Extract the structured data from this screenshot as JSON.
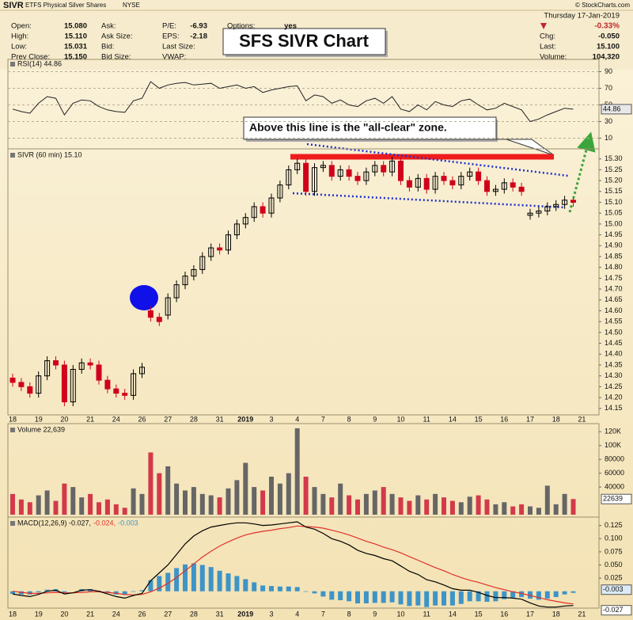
{
  "header": {
    "symbol": "SIVR",
    "name": "ETFS Physical Silver Shares",
    "exchange": "NYSE",
    "source": "© StockCharts.com",
    "date": "Thursday 17-Jan-2019",
    "change_pct": "-0.33%",
    "annotation": "SFS SIVR Chart",
    "fields": [
      [
        {
          "label": "Open:",
          "value": "15.080"
        },
        {
          "label": "High:",
          "value": "15.110"
        },
        {
          "label": "Low:",
          "value": "15.031"
        },
        {
          "label": "Prev Close:",
          "value": "15.150"
        }
      ],
      [
        {
          "label": "Ask:"
        },
        {
          "label": "Ask Size:"
        },
        {
          "label": "Bid:"
        },
        {
          "label": "Bid Size:"
        }
      ],
      [
        {
          "label": "P/E:",
          "value": "-6.93"
        },
        {
          "label": "EPS:",
          "value": "-2.18"
        },
        {
          "label": "Last Size:"
        },
        {
          "label": "VWAP:"
        }
      ],
      [
        {
          "label": "Options:",
          "value": "yes"
        }
      ]
    ],
    "right_fields": [
      {
        "label": "Chg:",
        "value": "-0.050"
      },
      {
        "label": "Last:",
        "value": "15.100"
      },
      {
        "label": "Volume:",
        "value": "104,320"
      }
    ]
  },
  "chart_data": [
    {
      "type": "line",
      "title": "RSI(14) 44.86",
      "color": "#222222",
      "ylim": [
        0,
        100
      ],
      "yticks": [
        10,
        30,
        50,
        70,
        90
      ],
      "grid": true,
      "values": [
        45,
        42,
        40,
        52,
        60,
        58,
        38,
        52,
        56,
        55,
        48,
        44,
        42,
        41,
        55,
        58,
        78,
        70,
        74,
        76,
        77,
        74,
        75,
        76,
        70,
        72,
        74,
        70,
        72,
        65,
        68,
        70,
        72,
        73,
        55,
        62,
        60,
        52,
        56,
        50,
        48,
        55,
        58,
        52,
        60,
        45,
        42,
        50,
        44,
        54,
        50,
        48,
        55,
        57,
        50,
        44,
        46,
        52,
        48,
        44,
        30,
        33,
        38,
        42,
        46,
        44.86,
        null,
        null,
        null
      ]
    },
    {
      "type": "candlestick",
      "title": "SIVR (60 min) 15.10",
      "up_color": "#000000",
      "down_color": "#d0021b",
      "annotation": "Above this line is the \"all-clear\" zone.",
      "categories": [
        "18",
        null,
        null,
        "19",
        null,
        null,
        "20",
        null,
        null,
        "21",
        null,
        null,
        "24",
        null,
        null,
        "26",
        null,
        null,
        "27",
        null,
        null,
        "28",
        null,
        null,
        "31",
        null,
        null,
        "2019",
        null,
        null,
        "3",
        null,
        null,
        "4",
        null,
        null,
        "7",
        null,
        null,
        "8",
        null,
        null,
        "9",
        null,
        null,
        "10",
        null,
        null,
        "11",
        null,
        null,
        "14",
        null,
        null,
        "15",
        null,
        null,
        "16",
        null,
        null,
        "17",
        null,
        null,
        "18",
        null,
        null,
        "21",
        null,
        null
      ],
      "open": [
        14.29,
        14.27,
        14.25,
        14.22,
        14.3,
        14.37,
        14.35,
        14.18,
        14.33,
        14.36,
        14.35,
        14.28,
        14.24,
        14.22,
        14.21,
        14.31,
        14.6,
        14.57,
        14.58,
        14.66,
        14.72,
        14.76,
        14.79,
        14.85,
        14.89,
        14.88,
        14.95,
        15.0,
        15.03,
        15.08,
        15.05,
        15.12,
        15.18,
        15.25,
        15.28,
        15.15,
        15.26,
        15.27,
        15.22,
        15.25,
        15.22,
        15.2,
        15.24,
        15.27,
        15.24,
        15.29,
        15.2,
        15.17,
        15.21,
        15.16,
        15.22,
        15.2,
        15.18,
        15.22,
        15.24,
        15.2,
        15.15,
        15.16,
        15.19,
        15.17,
        15.04,
        15.05,
        15.06,
        15.08,
        15.09,
        15.11,
        null,
        null,
        null
      ],
      "high": [
        14.31,
        14.29,
        14.27,
        14.32,
        14.39,
        14.39,
        14.37,
        14.35,
        14.38,
        14.38,
        14.37,
        14.3,
        14.26,
        14.24,
        14.33,
        14.36,
        14.62,
        14.59,
        14.68,
        14.74,
        14.78,
        14.81,
        14.87,
        14.91,
        14.91,
        14.97,
        15.02,
        15.05,
        15.1,
        15.1,
        15.14,
        15.2,
        15.27,
        15.3,
        15.3,
        15.28,
        15.29,
        15.29,
        15.27,
        15.27,
        15.24,
        15.26,
        15.29,
        15.29,
        15.31,
        15.31,
        15.22,
        15.23,
        15.23,
        15.24,
        15.24,
        15.22,
        15.24,
        15.26,
        15.26,
        15.22,
        15.18,
        15.21,
        15.21,
        15.19,
        15.07,
        15.08,
        15.1,
        15.11,
        15.13,
        15.12,
        null,
        null,
        null
      ],
      "low": [
        14.25,
        14.23,
        14.2,
        14.2,
        14.28,
        14.33,
        14.16,
        14.16,
        14.31,
        14.33,
        14.26,
        14.22,
        14.2,
        14.19,
        14.19,
        14.29,
        14.55,
        14.53,
        14.56,
        14.64,
        14.7,
        14.74,
        14.77,
        14.83,
        14.86,
        14.86,
        14.93,
        14.98,
        15.01,
        15.03,
        15.03,
        15.1,
        15.16,
        15.23,
        15.13,
        15.13,
        15.24,
        15.2,
        15.2,
        15.2,
        15.18,
        15.18,
        15.22,
        15.22,
        15.22,
        15.18,
        15.15,
        15.15,
        15.14,
        15.14,
        15.18,
        15.16,
        15.16,
        15.2,
        15.18,
        15.13,
        15.13,
        15.14,
        15.15,
        15.13,
        15.02,
        15.03,
        15.04,
        15.06,
        15.07,
        15.08,
        null,
        null,
        null
      ],
      "close": [
        14.27,
        14.25,
        14.22,
        14.3,
        14.37,
        14.35,
        14.18,
        14.33,
        14.36,
        14.35,
        14.28,
        14.24,
        14.22,
        14.21,
        14.31,
        14.34,
        14.57,
        14.55,
        14.66,
        14.72,
        14.76,
        14.79,
        14.85,
        14.89,
        14.88,
        14.95,
        15.0,
        15.03,
        15.08,
        15.05,
        15.12,
        15.18,
        15.25,
        15.28,
        15.15,
        15.26,
        15.27,
        15.22,
        15.25,
        15.22,
        15.2,
        15.24,
        15.27,
        15.24,
        15.29,
        15.2,
        15.17,
        15.21,
        15.16,
        15.22,
        15.2,
        15.18,
        15.22,
        15.24,
        15.2,
        15.15,
        15.16,
        15.19,
        15.17,
        15.15,
        15.05,
        15.06,
        15.08,
        15.09,
        15.11,
        15.1,
        null,
        null,
        null
      ],
      "ylim": [
        14.12,
        15.35
      ],
      "yticks": [
        {
          "value": 15.3,
          "label": "15.30"
        },
        15.25,
        {
          "value": 15.2,
          "label": "15.20"
        },
        15.15,
        {
          "value": 15.1,
          "label": "15.10"
        },
        15.05,
        {
          "value": 15.0,
          "label": "15.00"
        },
        14.95,
        {
          "value": 14.9,
          "label": "14.90"
        },
        14.85,
        {
          "value": 14.8,
          "label": "14.80"
        },
        14.75,
        {
          "value": 14.7,
          "label": "14.70"
        },
        14.65,
        {
          "value": 14.6,
          "label": "14.60"
        },
        14.55,
        {
          "value": 14.5,
          "label": "14.50"
        },
        14.45,
        {
          "value": 14.4,
          "label": "14.40"
        },
        14.35,
        {
          "value": 14.3,
          "label": "14.30"
        },
        14.25,
        {
          "value": 14.2,
          "label": "14.20"
        },
        14.15
      ]
    },
    {
      "type": "bar",
      "title": "Volume 22,639",
      "up_color": "#666666",
      "down_color": "#d23a4a",
      "ylim": [
        0,
        126000
      ],
      "yticks": [
        40000,
        60000,
        80000,
        {
          "value": 100000,
          "label": "100K"
        },
        {
          "value": 120000,
          "label": "120K"
        }
      ],
      "values": [
        30000,
        22000,
        18000,
        28000,
        35000,
        20000,
        45000,
        40000,
        25000,
        30000,
        18000,
        22000,
        15000,
        10000,
        38000,
        30000,
        90000,
        60000,
        70000,
        45000,
        35000,
        40000,
        30000,
        28000,
        25000,
        38000,
        50000,
        75000,
        40000,
        35000,
        55000,
        45000,
        60000,
        125000,
        55000,
        40000,
        30000,
        25000,
        45000,
        28000,
        22000,
        30000,
        35000,
        40000,
        30000,
        25000,
        20000,
        28000,
        22000,
        30000,
        25000,
        20000,
        18000,
        26000,
        28000,
        22000,
        15000,
        18000,
        12000,
        15000,
        12000,
        10000,
        42000,
        15000,
        30000,
        22639,
        null,
        null,
        null
      ]
    },
    {
      "type": "macd",
      "title_parts": [
        "MACD(12,26,9) -0.027,",
        "-0.024,",
        "-0.003"
      ],
      "ylim": [
        -0.032,
        0.135
      ],
      "yticks": [
        {
          "value": 0.025,
          "label": "0.025"
        },
        {
          "value": 0.05,
          "label": "0.050"
        },
        0.075,
        {
          "value": 0.1,
          "label": "0.100"
        },
        0.125
      ],
      "categories": [
        "18",
        null,
        null,
        "19",
        null,
        null,
        "20",
        null,
        null,
        "21",
        null,
        null,
        "24",
        null,
        null,
        "26",
        null,
        null,
        "27",
        null,
        null,
        "28",
        null,
        null,
        "31",
        null,
        null,
        "2019",
        null,
        null,
        "3",
        null,
        null,
        "4",
        null,
        null,
        "7",
        null,
        null,
        "8",
        null,
        null,
        "9",
        null,
        null,
        "10",
        null,
        null,
        "11",
        null,
        null,
        "14",
        null,
        null,
        "15",
        null,
        null,
        "16",
        null,
        null,
        "17",
        null,
        null,
        "18",
        null,
        null,
        "21",
        null,
        null
      ],
      "series": [
        {
          "color": "#000000",
          "values": [
            -0.005,
            -0.008,
            -0.01,
            -0.006,
            0.0,
            0.002,
            -0.005,
            -0.003,
            0.002,
            0.003,
            0.0,
            -0.005,
            -0.01,
            -0.013,
            -0.008,
            -0.004,
            0.02,
            0.035,
            0.05,
            0.07,
            0.09,
            0.105,
            0.115,
            0.122,
            0.125,
            0.128,
            0.13,
            0.13,
            0.128,
            0.125,
            0.126,
            0.128,
            0.13,
            0.132,
            0.122,
            0.118,
            0.11,
            0.1,
            0.095,
            0.088,
            0.078,
            0.072,
            0.068,
            0.062,
            0.058,
            0.048,
            0.038,
            0.032,
            0.022,
            0.018,
            0.012,
            0.005,
            0.002,
            0.002,
            -0.002,
            -0.008,
            -0.012,
            -0.012,
            -0.013,
            -0.015,
            -0.022,
            -0.028,
            -0.03,
            -0.03,
            -0.028,
            -0.027,
            null,
            null,
            null
          ]
        },
        {
          "color": "#e0302a",
          "values": [
            0.0,
            -0.002,
            -0.004,
            -0.004,
            -0.003,
            -0.002,
            -0.003,
            -0.003,
            -0.002,
            -0.001,
            -0.001,
            -0.002,
            -0.004,
            -0.006,
            -0.007,
            -0.006,
            -0.001,
            0.006,
            0.015,
            0.026,
            0.039,
            0.052,
            0.065,
            0.076,
            0.086,
            0.094,
            0.101,
            0.107,
            0.111,
            0.114,
            0.116,
            0.119,
            0.121,
            0.124,
            0.123,
            0.122,
            0.12,
            0.116,
            0.112,
            0.107,
            0.101,
            0.095,
            0.09,
            0.084,
            0.079,
            0.073,
            0.066,
            0.059,
            0.052,
            0.045,
            0.039,
            0.032,
            0.026,
            0.021,
            0.017,
            0.012,
            0.007,
            0.003,
            -0.001,
            -0.004,
            -0.008,
            -0.012,
            -0.016,
            -0.019,
            -0.022,
            -0.024,
            null,
            null,
            null
          ]
        },
        {
          "color": "#3d94c8",
          "values": [
            -0.005,
            -0.006,
            -0.006,
            -0.002,
            0.003,
            0.004,
            -0.002,
            0.0,
            0.004,
            0.004,
            0.001,
            -0.003,
            -0.006,
            -0.007,
            -0.001,
            0.002,
            0.021,
            0.029,
            0.035,
            0.044,
            0.051,
            0.053,
            0.05,
            0.046,
            0.039,
            0.034,
            0.029,
            0.023,
            0.017,
            0.011,
            0.01,
            0.009,
            0.009,
            0.008,
            -0.001,
            -0.004,
            -0.01,
            -0.016,
            -0.017,
            -0.019,
            -0.023,
            -0.023,
            -0.022,
            -0.022,
            -0.021,
            -0.025,
            -0.028,
            -0.027,
            -0.03,
            -0.027,
            -0.027,
            -0.027,
            -0.024,
            -0.019,
            -0.019,
            -0.02,
            -0.019,
            -0.015,
            -0.012,
            -0.011,
            -0.014,
            -0.016,
            -0.014,
            -0.011,
            -0.006,
            -0.003,
            null,
            null,
            null
          ]
        }
      ]
    }
  ]
}
